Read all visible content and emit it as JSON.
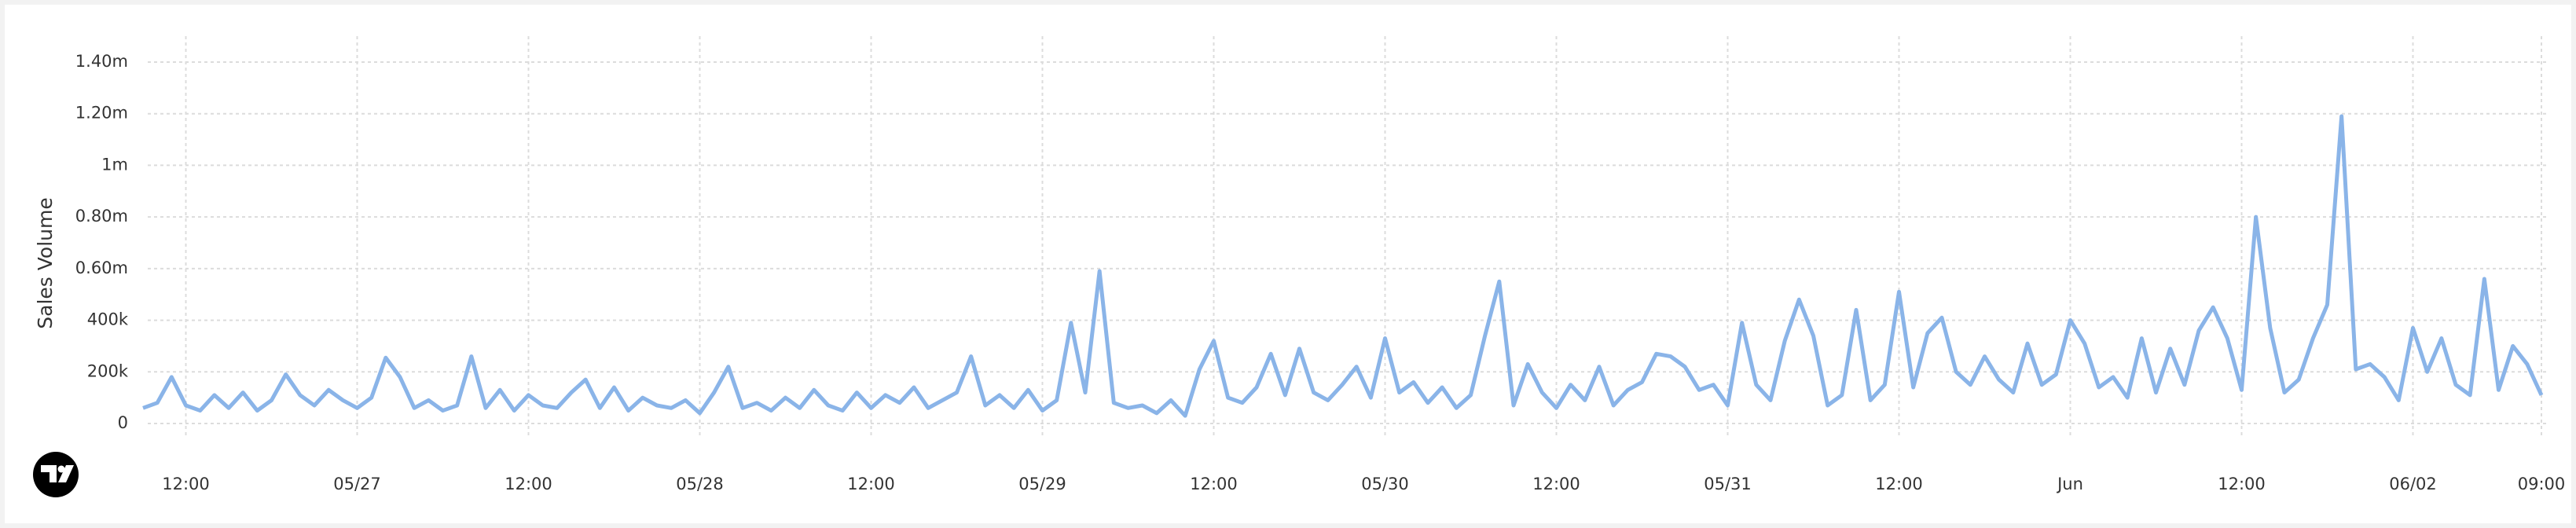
{
  "chart_data": {
    "type": "line",
    "y_axis_label": "Sales Volume",
    "x": [
      "05/26 09:00",
      "05/26 10:00",
      "05/26 11:00",
      "05/26 12:00",
      "05/26 13:00",
      "05/26 14:00",
      "05/26 15:00",
      "05/26 16:00",
      "05/26 17:00",
      "05/26 18:00",
      "05/26 19:00",
      "05/26 20:00",
      "05/26 21:00",
      "05/26 22:00",
      "05/26 23:00",
      "05/27 00:00",
      "05/27 01:00",
      "05/27 02:00",
      "05/27 03:00",
      "05/27 04:00",
      "05/27 05:00",
      "05/27 06:00",
      "05/27 07:00",
      "05/27 08:00",
      "05/27 09:00",
      "05/27 10:00",
      "05/27 11:00",
      "05/27 12:00",
      "05/27 13:00",
      "05/27 14:00",
      "05/27 15:00",
      "05/27 16:00",
      "05/27 17:00",
      "05/27 18:00",
      "05/27 19:00",
      "05/27 20:00",
      "05/27 21:00",
      "05/27 22:00",
      "05/27 23:00",
      "05/28 00:00",
      "05/28 01:00",
      "05/28 02:00",
      "05/28 03:00",
      "05/28 04:00",
      "05/28 05:00",
      "05/28 06:00",
      "05/28 07:00",
      "05/28 08:00",
      "05/28 09:00",
      "05/28 10:00",
      "05/28 11:00",
      "05/28 12:00",
      "05/28 13:00",
      "05/28 14:00",
      "05/28 15:00",
      "05/28 16:00",
      "05/28 17:00",
      "05/28 18:00",
      "05/28 19:00",
      "05/28 20:00",
      "05/28 21:00",
      "05/28 22:00",
      "05/28 23:00",
      "05/29 00:00",
      "05/29 01:00",
      "05/29 02:00",
      "05/29 03:00",
      "05/29 04:00",
      "05/29 05:00",
      "05/29 06:00",
      "05/29 07:00",
      "05/29 08:00",
      "05/29 09:00",
      "05/29 10:00",
      "05/29 11:00",
      "05/29 12:00",
      "05/29 13:00",
      "05/29 14:00",
      "05/29 15:00",
      "05/29 16:00",
      "05/29 17:00",
      "05/29 18:00",
      "05/29 19:00",
      "05/29 20:00",
      "05/29 21:00",
      "05/29 22:00",
      "05/29 23:00",
      "05/30 00:00",
      "05/30 01:00",
      "05/30 02:00",
      "05/30 03:00",
      "05/30 04:00",
      "05/30 05:00",
      "05/30 06:00",
      "05/30 07:00",
      "05/30 08:00",
      "05/30 09:00",
      "05/30 10:00",
      "05/30 11:00",
      "05/30 12:00",
      "05/30 13:00",
      "05/30 14:00",
      "05/30 15:00",
      "05/30 16:00",
      "05/30 17:00",
      "05/30 18:00",
      "05/30 19:00",
      "05/30 20:00",
      "05/30 21:00",
      "05/30 22:00",
      "05/30 23:00",
      "05/31 00:00",
      "05/31 01:00",
      "05/31 02:00",
      "05/31 03:00",
      "05/31 04:00",
      "05/31 05:00",
      "05/31 06:00",
      "05/31 07:00",
      "05/31 08:00",
      "05/31 09:00",
      "05/31 10:00",
      "05/31 11:00",
      "05/31 12:00",
      "05/31 13:00",
      "05/31 14:00",
      "05/31 15:00",
      "05/31 16:00",
      "05/31 17:00",
      "05/31 18:00",
      "05/31 19:00",
      "05/31 20:00",
      "05/31 21:00",
      "05/31 22:00",
      "05/31 23:00",
      "06/01 00:00",
      "06/01 01:00",
      "06/01 02:00",
      "06/01 03:00",
      "06/01 04:00",
      "06/01 05:00",
      "06/01 06:00",
      "06/01 07:00",
      "06/01 08:00",
      "06/01 09:00",
      "06/01 10:00",
      "06/01 11:00",
      "06/01 12:00",
      "06/01 13:00",
      "06/01 14:00",
      "06/01 15:00",
      "06/01 16:00",
      "06/01 17:00",
      "06/01 18:00",
      "06/01 19:00",
      "06/01 20:00",
      "06/01 21:00",
      "06/01 22:00",
      "06/01 23:00",
      "06/02 00:00",
      "06/02 01:00",
      "06/02 02:00",
      "06/02 03:00",
      "06/02 04:00",
      "06/02 05:00",
      "06/02 06:00",
      "06/02 07:00",
      "06/02 08:00",
      "06/02 09:00"
    ],
    "series": [
      {
        "name": "Sales Volume",
        "color": "#8ab4e8",
        "values": [
          60000,
          80000,
          180000,
          70000,
          50000,
          110000,
          60000,
          120000,
          50000,
          90000,
          190000,
          110000,
          70000,
          130000,
          90000,
          60000,
          100000,
          255000,
          180000,
          60000,
          90000,
          50000,
          70000,
          260000,
          60000,
          130000,
          50000,
          110000,
          70000,
          60000,
          120000,
          170000,
          60000,
          140000,
          50000,
          100000,
          70000,
          60000,
          90000,
          40000,
          120000,
          220000,
          60000,
          80000,
          50000,
          100000,
          60000,
          130000,
          70000,
          50000,
          120000,
          60000,
          110000,
          80000,
          140000,
          60000,
          90000,
          120000,
          260000,
          70000,
          110000,
          60000,
          130000,
          50000,
          90000,
          390000,
          120000,
          590000,
          80000,
          60000,
          70000,
          40000,
          90000,
          30000,
          210000,
          320000,
          100000,
          80000,
          140000,
          270000,
          110000,
          290000,
          120000,
          90000,
          150000,
          220000,
          100000,
          330000,
          120000,
          160000,
          80000,
          140000,
          60000,
          110000,
          340000,
          550000,
          70000,
          230000,
          120000,
          60000,
          150000,
          90000,
          220000,
          70000,
          130000,
          160000,
          270000,
          260000,
          220000,
          130000,
          150000,
          70000,
          390000,
          150000,
          90000,
          320000,
          480000,
          340000,
          70000,
          110000,
          440000,
          90000,
          150000,
          510000,
          140000,
          350000,
          410000,
          200000,
          150000,
          260000,
          170000,
          120000,
          310000,
          150000,
          190000,
          400000,
          310000,
          140000,
          180000,
          100000,
          330000,
          120000,
          290000,
          150000,
          360000,
          450000,
          330000,
          130000,
          800000,
          370000,
          120000,
          170000,
          330000,
          460000,
          1190000,
          210000,
          230000,
          180000,
          90000,
          370000,
          200000,
          330000,
          150000,
          110000,
          560000,
          130000,
          300000,
          230000,
          110000
        ]
      }
    ],
    "xlim": [
      "05/26 09:00",
      "06/02 09:00"
    ],
    "xticks": [
      {
        "value": "05/26 12:00",
        "label": "12:00"
      },
      {
        "value": "05/27 00:00",
        "label": "05/27"
      },
      {
        "value": "05/27 12:00",
        "label": "12:00"
      },
      {
        "value": "05/28 00:00",
        "label": "05/28"
      },
      {
        "value": "05/28 12:00",
        "label": "12:00"
      },
      {
        "value": "05/29 00:00",
        "label": "05/29"
      },
      {
        "value": "05/29 12:00",
        "label": "12:00"
      },
      {
        "value": "05/30 00:00",
        "label": "05/30"
      },
      {
        "value": "05/30 12:00",
        "label": "12:00"
      },
      {
        "value": "05/31 00:00",
        "label": "05/31"
      },
      {
        "value": "05/31 12:00",
        "label": "12:00"
      },
      {
        "value": "06/01 00:00",
        "label": "Jun"
      },
      {
        "value": "06/01 12:00",
        "label": "12:00"
      },
      {
        "value": "06/02 00:00",
        "label": "06/02"
      },
      {
        "value": "06/02 09:00",
        "label": "09:00"
      }
    ],
    "ylim": [
      0,
      1400000
    ],
    "yticks": [
      0,
      {
        "value": 200000,
        "label": "200k"
      },
      {
        "value": 400000,
        "label": "400k"
      },
      {
        "value": 600000,
        "label": "0.60m"
      },
      {
        "value": 800000,
        "label": "0.80m"
      },
      {
        "value": 1000000,
        "label": "1m"
      },
      {
        "value": 1200000,
        "label": "1.20m"
      },
      {
        "value": 1400000,
        "label": "1.40m"
      }
    ],
    "grid": true
  }
}
